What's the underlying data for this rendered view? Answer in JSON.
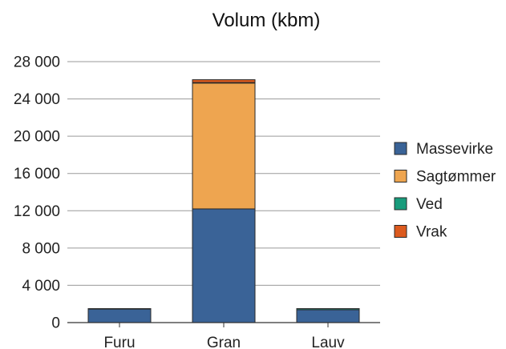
{
  "chart_data": {
    "type": "bar",
    "stacked": true,
    "title": "Volum (kbm)",
    "xlabel": "",
    "ylabel": "",
    "categories": [
      "Furu",
      "Gran",
      "Lauv"
    ],
    "series": [
      {
        "name": "Massevirke",
        "color": "#3a6397",
        "values": [
          1450,
          12200,
          1380
        ]
      },
      {
        "name": "Sagtømmer",
        "color": "#eea550",
        "values": [
          20,
          13500,
          0
        ]
      },
      {
        "name": "Ved",
        "color": "#189c7c",
        "values": [
          30,
          60,
          120
        ]
      },
      {
        "name": "Vrak",
        "color": "#dc5a1e",
        "values": [
          0,
          300,
          0
        ]
      }
    ],
    "ylim": [
      0,
      28000
    ],
    "yticks": [
      0,
      4000,
      8000,
      12000,
      16000,
      20000,
      24000,
      28000
    ],
    "ytick_labels": [
      "0",
      "4 000",
      "8 000",
      "12 000",
      "16 000",
      "20 000",
      "24 000",
      "28 000"
    ],
    "grid": true,
    "legend_position": "right"
  }
}
